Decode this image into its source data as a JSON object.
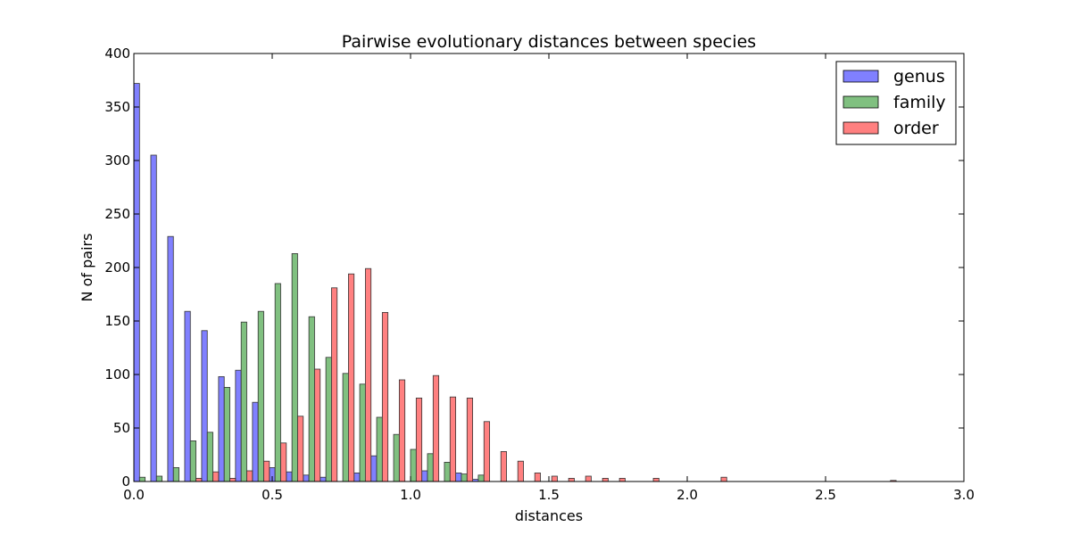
{
  "chart_data": {
    "type": "bar",
    "title": "Pairwise evolutionary distances between species",
    "xlabel": "distances",
    "ylabel": "N of pairs",
    "xlim": [
      0.0,
      3.0
    ],
    "ylim": [
      0,
      400
    ],
    "xticks": [
      "0.0",
      "0.5",
      "1.0",
      "1.5",
      "2.0",
      "2.5",
      "3.0"
    ],
    "yticks": [
      "0",
      "50",
      "100",
      "150",
      "200",
      "250",
      "300",
      "350",
      "400"
    ],
    "bin_width": 0.0612,
    "legend_position": "top-right",
    "grid": false,
    "bins": [
      0.0,
      0.0612,
      0.1224,
      0.1837,
      0.2449,
      0.3061,
      0.3673,
      0.4286,
      0.4898,
      0.551,
      0.6122,
      0.6735,
      0.7347,
      0.7959,
      0.8571,
      0.9184,
      0.9796,
      1.0408,
      1.102,
      1.1633,
      1.2245,
      1.2857,
      1.3469,
      1.4082,
      1.4694,
      1.5306,
      1.5918,
      1.6531,
      1.7143,
      1.7755,
      1.8367,
      1.898,
      1.9592,
      2.0204,
      2.0816,
      2.1429,
      2.2041,
      2.2653,
      2.3265,
      2.3878,
      2.449,
      2.5102,
      2.5714,
      2.6327,
      2.6939,
      2.7551,
      2.8163,
      2.8776,
      2.9388
    ],
    "series": [
      {
        "name": "genus",
        "color": "#8080ff",
        "values": [
          372,
          305,
          229,
          159,
          141,
          98,
          104,
          74,
          13,
          9,
          6,
          4,
          0,
          8,
          24,
          0,
          0,
          10,
          0,
          8,
          2,
          0,
          0,
          0,
          0,
          0,
          0,
          0,
          0,
          0,
          0,
          0,
          0,
          0,
          0,
          0,
          0,
          0,
          0,
          0,
          0,
          0,
          0,
          0,
          0,
          0,
          0,
          0,
          0
        ]
      },
      {
        "name": "family",
        "color": "#80c080",
        "values": [
          4,
          5,
          13,
          38,
          46,
          88,
          149,
          159,
          185,
          213,
          154,
          116,
          101,
          91,
          60,
          44,
          30,
          26,
          18,
          7,
          6,
          0,
          0,
          0,
          0,
          0,
          0,
          0,
          0,
          0,
          0,
          0,
          0,
          0,
          0,
          0,
          0,
          0,
          0,
          0,
          0,
          0,
          0,
          0,
          0,
          0,
          0,
          0,
          0
        ]
      },
      {
        "name": "order",
        "color": "#ff8080",
        "values": [
          0,
          0,
          0,
          3,
          9,
          3,
          10,
          19,
          36,
          61,
          105,
          181,
          194,
          199,
          158,
          95,
          78,
          99,
          79,
          78,
          56,
          28,
          19,
          8,
          5,
          3,
          5,
          3,
          3,
          0,
          3,
          0,
          0,
          0,
          4,
          0,
          0,
          0,
          0,
          0,
          0,
          0,
          0,
          0,
          1,
          0,
          0,
          0,
          0
        ]
      }
    ]
  }
}
